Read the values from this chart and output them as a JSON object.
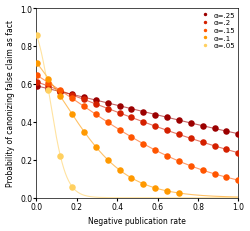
{
  "alphas": [
    0.25,
    0.2,
    0.15,
    0.1,
    0.05
  ],
  "colors": [
    "#9B0000",
    "#D42000",
    "#FF5500",
    "#FF9900",
    "#FFD060"
  ],
  "legend_labels": [
    "α=.25",
    "α=.2",
    "α=.15",
    "α=.1",
    "α=.05"
  ],
  "xlabel": "Negative publication rate",
  "ylabel": "Probability of canonizing false claim as fact",
  "xlim": [
    0,
    1
  ],
  "ylim": [
    0,
    1
  ],
  "xticks": [
    0,
    0.2,
    0.4,
    0.6,
    0.8,
    1
  ],
  "yticks": [
    0,
    0.2,
    0.4,
    0.6,
    0.8,
    1
  ],
  "n_dots": 18,
  "dot_size": 22,
  "line_width": 0.8,
  "line_alpha": 0.6
}
